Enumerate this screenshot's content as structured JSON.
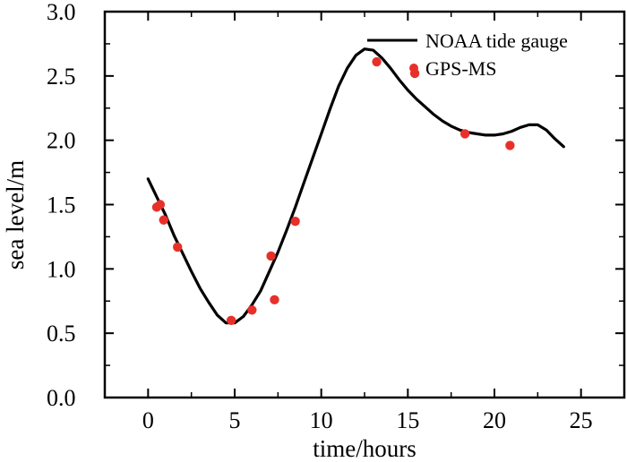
{
  "chart_data": {
    "type": "line",
    "title": "",
    "xlabel": "time/hours",
    "ylabel": "sea level/m",
    "xlim": [
      -2.5,
      27.5
    ],
    "ylim": [
      0.0,
      3.0
    ],
    "x_ticks": [
      0,
      5,
      10,
      15,
      20,
      25
    ],
    "x_tick_labels": [
      "0",
      "5",
      "10",
      "15",
      "20",
      "25"
    ],
    "y_ticks": [
      0.0,
      0.5,
      1.0,
      1.5,
      2.0,
      2.5,
      3.0
    ],
    "y_tick_labels": [
      "0.0",
      "0.5",
      "1.0",
      "1.5",
      "2.0",
      "2.5",
      "3.0"
    ],
    "grid": false,
    "legend_position": "top-right",
    "series": [
      {
        "name": "NOAA tide gauge",
        "kind": "line",
        "color": "#000000",
        "x": [
          0,
          0.5,
          1,
          1.5,
          2,
          2.5,
          3,
          3.5,
          4,
          4.5,
          5,
          5.5,
          6,
          6.5,
          7,
          7.5,
          8,
          8.5,
          9,
          9.5,
          10,
          10.5,
          11,
          11.5,
          12,
          12.5,
          13,
          13.5,
          14,
          14.5,
          15,
          15.5,
          16,
          16.5,
          17,
          17.5,
          18,
          18.5,
          19,
          19.5,
          20,
          20.5,
          21,
          21.5,
          22,
          22.5,
          23,
          23.5,
          24
        ],
        "y": [
          1.7,
          1.56,
          1.42,
          1.26,
          1.12,
          0.98,
          0.85,
          0.74,
          0.64,
          0.58,
          0.58,
          0.63,
          0.72,
          0.83,
          0.98,
          1.13,
          1.3,
          1.48,
          1.67,
          1.86,
          2.05,
          2.24,
          2.42,
          2.56,
          2.66,
          2.71,
          2.7,
          2.64,
          2.56,
          2.47,
          2.39,
          2.32,
          2.26,
          2.2,
          2.15,
          2.11,
          2.08,
          2.06,
          2.05,
          2.04,
          2.04,
          2.05,
          2.07,
          2.1,
          2.12,
          2.12,
          2.08,
          2.01,
          1.95
        ]
      },
      {
        "name": "GPS-MS",
        "kind": "scatter",
        "color": "#e8302a",
        "x": [
          0.5,
          0.7,
          0.9,
          1.7,
          4.8,
          6.0,
          7.1,
          7.3,
          8.5,
          13.2,
          15.4,
          18.3,
          20.9
        ],
        "y": [
          1.48,
          1.5,
          1.38,
          1.17,
          0.6,
          0.68,
          1.1,
          0.76,
          1.37,
          2.61,
          2.52,
          2.05,
          1.96
        ]
      }
    ]
  }
}
